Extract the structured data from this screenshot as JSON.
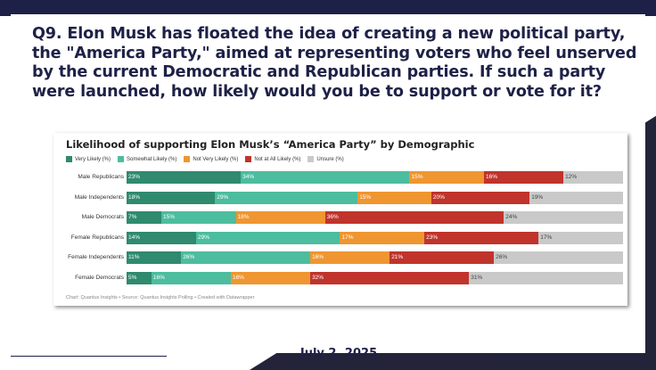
{
  "question": "Q9. Elon Musk has floated the idea of creating a new political party, the \"America Party,\" aimed at representing voters who feel unserved by the current Democratic and Republican parties. If such a party were launched, how likely would you be to support or vote for it?",
  "date": "July 2, 2025",
  "colors": {
    "background": "#ffffff",
    "navy": "#1e2147",
    "very_likely": "#2f8a6e",
    "somewhat_likely": "#4cbd9f",
    "not_very_likely": "#ef9630",
    "not_at_all_likely": "#c0342c",
    "unsure": "#c9c9c9"
  },
  "chart_data": {
    "type": "bar",
    "orientation": "horizontal-stacked",
    "title": "Likelihood of supporting Elon Musk’s “America Party” by Demographic",
    "categories": [
      "Male Republicans",
      "Male Independents",
      "Male Democrats",
      "Female Republicans",
      "Female Independents",
      "Female Democrats"
    ],
    "series": [
      {
        "name": "Very Likely (%)",
        "color": "#2f8a6e",
        "values": [
          23,
          18,
          7,
          14,
          11,
          5
        ]
      },
      {
        "name": "Somewhat Likely (%)",
        "color": "#4cbd9f",
        "values": [
          34,
          29,
          15,
          29,
          26,
          16
        ]
      },
      {
        "name": "Not Very Likely (%)",
        "color": "#ef9630",
        "values": [
          15,
          15,
          18,
          17,
          16,
          16
        ]
      },
      {
        "name": "Not at All Likely (%)",
        "color": "#c0342c",
        "values": [
          16,
          20,
          36,
          23,
          21,
          32
        ]
      },
      {
        "name": "Unsure (%)",
        "color": "#c9c9c9",
        "values": [
          12,
          19,
          24,
          17,
          26,
          31
        ]
      }
    ],
    "xlim": [
      0,
      100
    ],
    "legend": "top-left",
    "grid": false,
    "footnote": "Chart: Quantus Insights • Source: Quantus Insights Polling • Created with Datawrapper"
  }
}
